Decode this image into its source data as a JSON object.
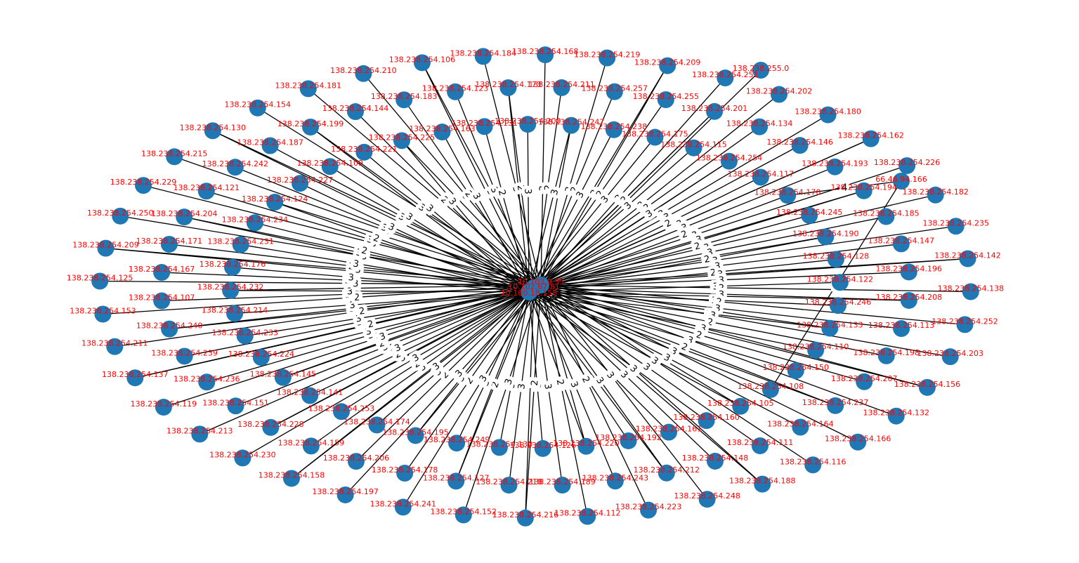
{
  "figure": {
    "type": "network-graph",
    "node_color": "#1f77b4",
    "label_color": "#ff0000",
    "edge_color": "#000000",
    "hubs": [
      "10.103.9.35",
      "10.102.67.81",
      "10.100.18.158"
    ],
    "extra_nodes": [
      "66.46.94.166",
      "138.238.255.0"
    ],
    "extra_edges": [
      {
        "source": "138.238.254.170",
        "target": "66.46.94.166",
        "label": "4"
      },
      {
        "source": "66.46.94.166",
        "target": "138.238.254.108",
        "label": "4"
      }
    ],
    "peripheral": [
      {
        "host": "184",
        "w": 3
      },
      {
        "host": "173",
        "w": 2
      },
      {
        "host": "200",
        "w": 3
      },
      {
        "host": "168",
        "w": 3
      },
      {
        "host": "211",
        "w": 2
      },
      {
        "host": "247",
        "w": 3
      },
      {
        "host": "219",
        "w": 3
      },
      {
        "host": "257",
        "w": 2
      },
      {
        "host": "238",
        "w": 3
      },
      {
        "host": "209",
        "w": 3
      },
      {
        "host": "255",
        "w": 2
      },
      {
        "host": "175",
        "w": 3
      },
      {
        "host": "251",
        "w": 3
      },
      {
        "host": "201",
        "w": 2
      },
      {
        "host": "115",
        "w": 3
      },
      {
        "host": "202",
        "w": 3
      },
      {
        "host": "134",
        "w": 2
      },
      {
        "host": "254",
        "w": 3
      },
      {
        "host": "180",
        "w": 3
      },
      {
        "host": "146",
        "w": 3
      },
      {
        "host": "117",
        "w": 2
      },
      {
        "host": "162",
        "w": 3
      },
      {
        "host": "193",
        "w": 3
      },
      {
        "host": "170",
        "w": 2
      },
      {
        "host": "226",
        "w": 3
      },
      {
        "host": "194",
        "w": 3
      },
      {
        "host": "245",
        "w": 2
      },
      {
        "host": "182",
        "w": 3
      },
      {
        "host": "185",
        "w": 3
      },
      {
        "host": "190",
        "w": 2
      },
      {
        "host": "235",
        "w": 3
      },
      {
        "host": "147",
        "w": 3
      },
      {
        "host": "128",
        "w": 2
      },
      {
        "host": "142",
        "w": 3
      },
      {
        "host": "196",
        "w": 3
      },
      {
        "host": "122",
        "w": 3
      },
      {
        "host": "138",
        "w": 2
      },
      {
        "host": "208",
        "w": 3
      },
      {
        "host": "246",
        "w": 3
      },
      {
        "host": "252",
        "w": 2
      },
      {
        "host": "113",
        "w": 3
      },
      {
        "host": "133",
        "w": 3
      },
      {
        "host": "203",
        "w": 3
      },
      {
        "host": "198",
        "w": 2
      },
      {
        "host": "110",
        "w": 3
      },
      {
        "host": "156",
        "w": 3
      },
      {
        "host": "207",
        "w": 2
      },
      {
        "host": "150",
        "w": 3
      },
      {
        "host": "132",
        "w": 3
      },
      {
        "host": "237",
        "w": 2
      },
      {
        "host": "108",
        "w": 3
      },
      {
        "host": "166",
        "w": 3
      },
      {
        "host": "164",
        "w": 3
      },
      {
        "host": "105",
        "w": 2
      },
      {
        "host": "116",
        "w": 3
      },
      {
        "host": "111",
        "w": 3
      },
      {
        "host": "160",
        "w": 2
      },
      {
        "host": "188",
        "w": 3
      },
      {
        "host": "148",
        "w": 3
      },
      {
        "host": "161",
        "w": 2
      },
      {
        "host": "248",
        "w": 3
      },
      {
        "host": "212",
        "w": 3
      },
      {
        "host": "192",
        "w": 3
      },
      {
        "host": "223",
        "w": 2
      },
      {
        "host": "243",
        "w": 3
      },
      {
        "host": "220",
        "w": 3
      },
      {
        "host": "112",
        "w": 2
      },
      {
        "host": "189",
        "w": 3
      },
      {
        "host": "126",
        "w": 3
      },
      {
        "host": "216",
        "w": 2
      },
      {
        "host": "218",
        "w": 3
      },
      {
        "host": "130",
        "w": 3
      },
      {
        "host": "152",
        "w": 3
      },
      {
        "host": "127",
        "w": 2
      },
      {
        "host": "249",
        "w": 3
      },
      {
        "host": "241",
        "w": 3
      },
      {
        "host": "178",
        "w": 2
      },
      {
        "host": "195",
        "w": 3
      },
      {
        "host": "197",
        "w": 3
      },
      {
        "host": "206",
        "w": 2
      },
      {
        "host": "174",
        "w": 3
      },
      {
        "host": "158",
        "w": 3
      },
      {
        "host": "159",
        "w": 3
      },
      {
        "host": "253",
        "w": 2
      },
      {
        "host": "230",
        "w": 3
      },
      {
        "host": "228",
        "w": 3
      },
      {
        "host": "141",
        "w": 2
      },
      {
        "host": "213",
        "w": 3
      },
      {
        "host": "151",
        "w": 3
      },
      {
        "host": "145",
        "w": 2
      },
      {
        "host": "119",
        "w": 3
      },
      {
        "host": "236",
        "w": 3
      },
      {
        "host": "224",
        "w": 3
      },
      {
        "host": "137",
        "w": 2
      },
      {
        "host": "239",
        "w": 3
      },
      {
        "host": "233",
        "w": 3
      },
      {
        "host": "211b",
        "w": 2
      },
      {
        "host": "240",
        "w": 3
      },
      {
        "host": "214",
        "w": 3
      },
      {
        "host": "153",
        "w": 2
      },
      {
        "host": "107",
        "w": 3
      },
      {
        "host": "232",
        "w": 3
      },
      {
        "host": "125",
        "w": 3
      },
      {
        "host": "167",
        "w": 2
      },
      {
        "host": "176",
        "w": 3
      },
      {
        "host": "209b",
        "w": 3
      },
      {
        "host": "171",
        "w": 2
      },
      {
        "host": "231",
        "w": 3
      },
      {
        "host": "250",
        "w": 3
      },
      {
        "host": "204",
        "w": 3
      },
      {
        "host": "234",
        "w": 2
      },
      {
        "host": "229",
        "w": 3
      },
      {
        "host": "121",
        "w": 3
      },
      {
        "host": "124",
        "w": 2
      },
      {
        "host": "215",
        "w": 3
      },
      {
        "host": "242",
        "w": 3
      },
      {
        "host": "227",
        "w": 3
      },
      {
        "host": "130b",
        "w": 2
      },
      {
        "host": "187",
        "w": 3
      },
      {
        "host": "109",
        "w": 3
      },
      {
        "host": "154",
        "w": 2
      },
      {
        "host": "199",
        "w": 3
      },
      {
        "host": "221",
        "w": 3
      },
      {
        "host": "181",
        "w": 3
      },
      {
        "host": "144",
        "w": 2
      },
      {
        "host": "225",
        "w": 3
      },
      {
        "host": "210",
        "w": 3
      },
      {
        "host": "183",
        "w": 2
      },
      {
        "host": "163",
        "w": 3
      },
      {
        "host": "106",
        "w": 3
      },
      {
        "host": "123",
        "w": 3
      },
      {
        "host": "131",
        "w": 2
      }
    ],
    "labels": [
      "138.238.254.184",
      "138.238.254.173",
      "138.238.254.200",
      "138.238.254.168",
      "138.238.254.211",
      "138.238.254.247",
      "138.238.254.219",
      "138.238.254.257",
      "138.238.254.238",
      "138.238.254.209",
      "138.238.254.255",
      "138.238.254.175",
      "138.238.254.251",
      "138.238.254.201",
      "138.238.254.115",
      "138.238.254.202",
      "138.238.254.134",
      "138.238.254.254",
      "138.238.254.180",
      "138.238.254.146",
      "138.238.254.117",
      "138.238.254.162",
      "138.238.254.193",
      "138.238.254.170",
      "138.238.254.226",
      "138.238.254.194",
      "138.238.254.245",
      "138.238.254.182",
      "138.238.254.185",
      "138.238.254.190",
      "138.238.254.235",
      "138.238.254.147",
      "138.238.254.128",
      "138.238.254.142",
      "138.238.254.196",
      "138.238.254.122",
      "138.238.254.138",
      "138.238.254.208",
      "138.238.254.246",
      "138.238.254.252",
      "138.238.254.113",
      "138.238.254.133",
      "138.238.254.203",
      "138.238.254.198",
      "138.238.254.110",
      "138.238.254.156",
      "138.238.254.207",
      "138.238.254.150",
      "138.238.254.132",
      "138.238.254.237",
      "138.238.254.108",
      "138.238.254.166",
      "138.238.254.164",
      "138.238.254.105",
      "138.238.254.116",
      "138.238.254.111",
      "138.238.254.160",
      "138.238.254.188",
      "138.238.254.148",
      "138.238.254.161",
      "138.238.254.248",
      "138.238.254.212",
      "138.238.254.192",
      "138.238.254.223",
      "138.238.254.243",
      "138.238.254.220",
      "138.238.254.112",
      "138.238.254.189",
      "138.238.254.126",
      "138.238.254.216",
      "138.238.254.218",
      "138.238.254.130",
      "138.238.254.152",
      "138.238.254.127",
      "138.238.254.249",
      "138.238.254.241",
      "138.238.254.178",
      "138.238.254.195",
      "138.238.254.197",
      "138.238.254.206",
      "138.238.254.174",
      "138.238.254.158",
      "138.238.254.159",
      "138.238.254.253",
      "138.238.254.230",
      "138.238.254.228",
      "138.238.254.141",
      "138.238.254.213",
      "138.238.254.151",
      "138.238.254.145",
      "138.238.254.119",
      "138.238.254.236",
      "138.238.254.224",
      "138.238.254.137",
      "138.238.254.239",
      "138.238.254.233",
      "138.238.254.211",
      "138.238.254.240",
      "138.238.254.214",
      "138.238.254.153",
      "138.238.254.107",
      "138.238.254.232",
      "138.238.254.125",
      "138.238.254.167",
      "138.238.254.176",
      "138.238.254.209",
      "138.238.254.171",
      "138.238.254.231",
      "138.238.254.250",
      "138.238.254.204",
      "138.238.254.234",
      "138.238.254.229",
      "138.238.254.121",
      "138.238.254.124",
      "138.238.254.215",
      "138.238.254.242",
      "138.238.254.227",
      "138.238.254.130",
      "138.238.254.187",
      "138.238.254.109",
      "138.238.254.154",
      "138.238.254.199",
      "138.238.254.221",
      "138.238.254.181",
      "138.238.254.144",
      "138.238.254.225",
      "138.238.254.210",
      "138.238.254.183",
      "138.238.254.163",
      "138.238.254.106",
      "138.238.254.123",
      "138.238.254.131"
    ]
  }
}
